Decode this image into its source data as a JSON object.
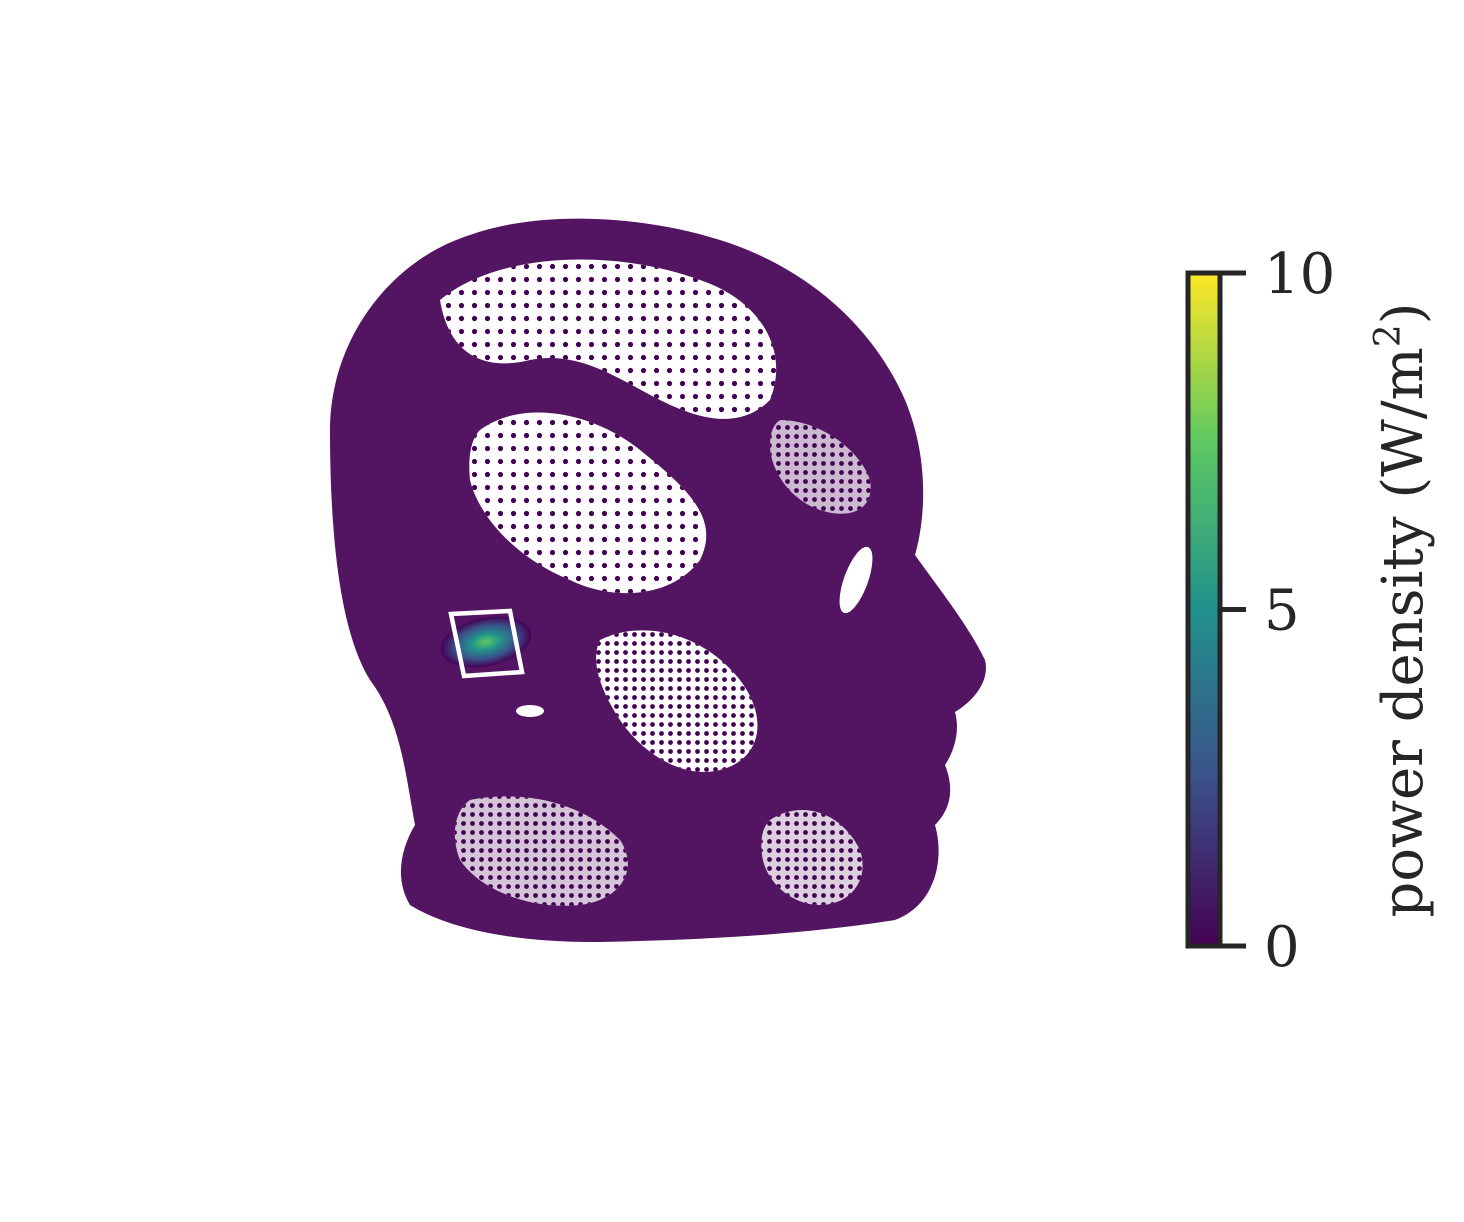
{
  "chart_data": {
    "type": "scatter",
    "description_kind": "3d-point-cloud-colormap",
    "colormap": "viridis",
    "colormap_stops": [
      "#440154",
      "#3b528b",
      "#21918c",
      "#5ec962",
      "#fde725"
    ],
    "colorbar": {
      "label_prefix": "power density (W/m",
      "label_sup": "2",
      "label_suffix": ")",
      "range": [
        0,
        10
      ],
      "ticks": [
        "0",
        "5",
        "10"
      ],
      "tick_values": [
        0,
        5,
        10
      ],
      "placement": "right"
    },
    "point_color_base": "#440154",
    "hotspot_peak_value": 9.5,
    "box_color": "#ffffff"
  }
}
